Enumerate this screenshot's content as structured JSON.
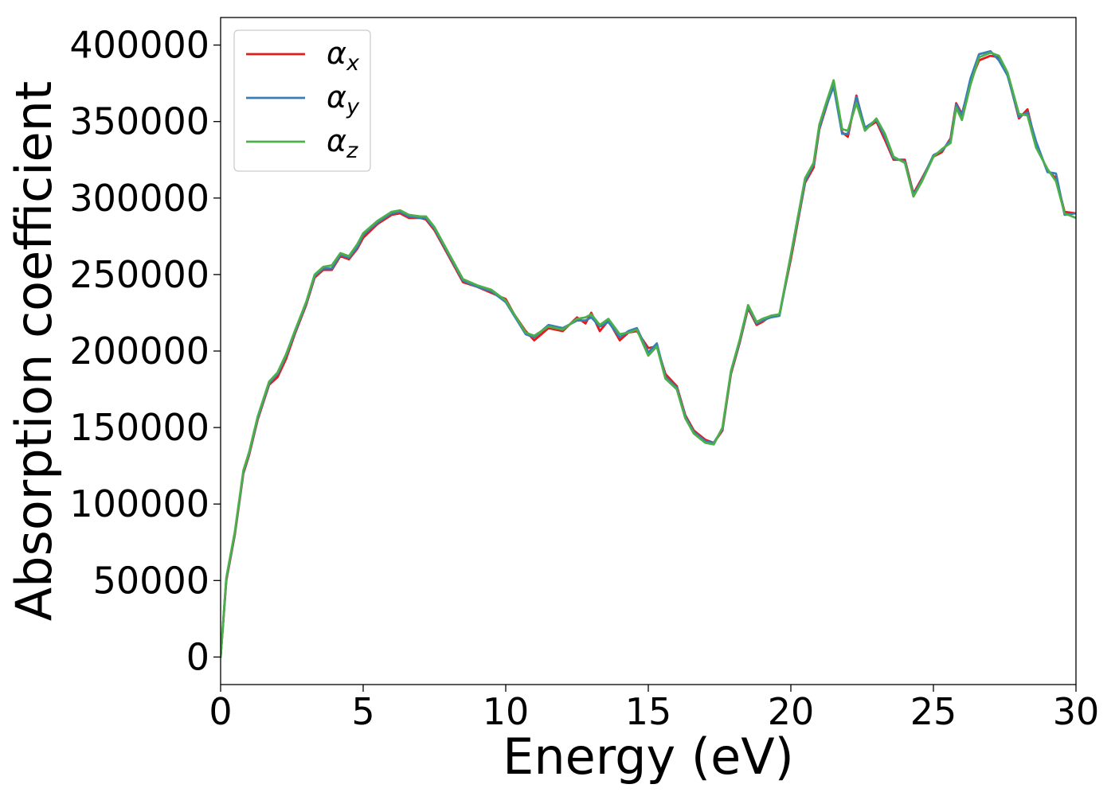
{
  "chart_data": {
    "type": "line",
    "title": "",
    "xlabel": "Energy (eV)",
    "ylabel": "Absorption coefficient",
    "xlim": [
      0,
      30
    ],
    "ylim": [
      -18000,
      418000
    ],
    "xticks": [
      0,
      5,
      10,
      15,
      20,
      25,
      30
    ],
    "yticks": [
      0,
      50000,
      100000,
      150000,
      200000,
      250000,
      300000,
      350000,
      400000
    ],
    "grid": false,
    "legend_position": "top-left",
    "series": [
      {
        "name": "α_x",
        "legend_symbol": "α",
        "legend_sub": "x",
        "color": "#e41a1c",
        "x": [
          0,
          0.2,
          0.5,
          0.8,
          1.0,
          1.3,
          1.7,
          2.0,
          2.3,
          2.6,
          3.0,
          3.3,
          3.6,
          3.9,
          4.2,
          4.5,
          4.8,
          5.0,
          5.5,
          6.0,
          6.3,
          6.6,
          7.0,
          7.2,
          7.5,
          8.0,
          8.5,
          9.0,
          9.5,
          10.0,
          10.3,
          10.7,
          11.0,
          11.5,
          12.0,
          12.5,
          12.8,
          13.0,
          13.3,
          13.6,
          14.0,
          14.3,
          14.6,
          15.0,
          15.3,
          15.6,
          16.0,
          16.3,
          16.6,
          17.0,
          17.3,
          17.6,
          17.9,
          18.2,
          18.5,
          18.8,
          19.0,
          19.3,
          19.6,
          20.0,
          20.5,
          20.8,
          21.0,
          21.2,
          21.5,
          21.8,
          22.0,
          22.3,
          22.6,
          23.0,
          23.3,
          23.6,
          24.0,
          24.3,
          24.6,
          25.0,
          25.3,
          25.6,
          25.8,
          26.0,
          26.3,
          26.6,
          27.0,
          27.3,
          27.6,
          28.0,
          28.3,
          28.6,
          29.0,
          29.3,
          29.6,
          30.0
        ],
        "values": [
          0,
          50000,
          80000,
          120000,
          132000,
          155000,
          178000,
          183000,
          195000,
          211000,
          230000,
          248000,
          253000,
          253000,
          262000,
          260000,
          267000,
          274000,
          283000,
          289000,
          290000,
          287000,
          287000,
          286000,
          279000,
          262000,
          245000,
          242000,
          238000,
          234000,
          224000,
          213000,
          207000,
          215000,
          213000,
          222000,
          218000,
          225000,
          213000,
          220000,
          207000,
          212000,
          213000,
          202000,
          203000,
          185000,
          177000,
          158000,
          148000,
          142000,
          140000,
          148000,
          185000,
          205000,
          228000,
          217000,
          219000,
          223000,
          224000,
          260000,
          310000,
          320000,
          345000,
          357000,
          375000,
          343000,
          340000,
          367000,
          345000,
          350000,
          338000,
          325000,
          325000,
          303000,
          313000,
          327000,
          330000,
          339000,
          362000,
          355000,
          376000,
          390000,
          393000,
          392000,
          381000,
          352000,
          358000,
          335000,
          318000,
          313000,
          291000,
          290000
        ]
      },
      {
        "name": "α_y",
        "legend_symbol": "α",
        "legend_sub": "y",
        "color": "#377eb8",
        "x": [
          0,
          0.2,
          0.5,
          0.8,
          1.0,
          1.3,
          1.7,
          2.0,
          2.3,
          2.6,
          3.0,
          3.3,
          3.6,
          3.9,
          4.2,
          4.5,
          4.8,
          5.0,
          5.5,
          6.0,
          6.3,
          6.6,
          7.0,
          7.2,
          7.5,
          8.0,
          8.5,
          9.0,
          9.5,
          10.0,
          10.3,
          10.7,
          11.0,
          11.5,
          12.0,
          12.5,
          12.8,
          13.0,
          13.3,
          13.6,
          14.0,
          14.3,
          14.6,
          15.0,
          15.3,
          15.6,
          16.0,
          16.3,
          16.6,
          17.0,
          17.3,
          17.6,
          17.9,
          18.2,
          18.5,
          18.8,
          19.0,
          19.3,
          19.6,
          20.0,
          20.5,
          20.8,
          21.0,
          21.2,
          21.5,
          21.8,
          22.0,
          22.3,
          22.6,
          23.0,
          23.3,
          23.6,
          24.0,
          24.3,
          24.6,
          25.0,
          25.3,
          25.6,
          25.8,
          26.0,
          26.3,
          26.6,
          27.0,
          27.3,
          27.6,
          28.0,
          28.3,
          28.6,
          29.0,
          29.3,
          29.6,
          30.0
        ],
        "values": [
          0,
          51000,
          81000,
          121000,
          133000,
          156000,
          179000,
          185000,
          197000,
          212000,
          231000,
          249000,
          254000,
          254000,
          263000,
          261000,
          268000,
          276000,
          284000,
          290000,
          291000,
          288000,
          287000,
          287000,
          280000,
          263000,
          246000,
          242000,
          239000,
          232000,
          223000,
          211000,
          209000,
          217000,
          215000,
          220000,
          220000,
          222000,
          216000,
          219000,
          209000,
          213000,
          215000,
          199000,
          205000,
          183000,
          176000,
          157000,
          147000,
          141000,
          140000,
          149000,
          186000,
          206000,
          229000,
          218000,
          220000,
          222000,
          223000,
          262000,
          311000,
          322000,
          346000,
          358000,
          373000,
          342000,
          342000,
          366000,
          346000,
          351000,
          340000,
          326000,
          324000,
          302000,
          312000,
          328000,
          331000,
          338000,
          361000,
          354000,
          378000,
          394000,
          396000,
          390000,
          380000,
          353000,
          356000,
          337000,
          317000,
          316000,
          289000,
          290000
        ]
      },
      {
        "name": "α_z",
        "legend_symbol": "α",
        "legend_sub": "z",
        "color": "#4daf4a",
        "x": [
          0,
          0.2,
          0.5,
          0.8,
          1.0,
          1.3,
          1.7,
          2.0,
          2.3,
          2.6,
          3.0,
          3.3,
          3.6,
          3.9,
          4.2,
          4.5,
          4.8,
          5.0,
          5.5,
          6.0,
          6.3,
          6.6,
          7.0,
          7.2,
          7.5,
          8.0,
          8.5,
          9.0,
          9.5,
          10.0,
          10.3,
          10.7,
          11.0,
          11.5,
          12.0,
          12.5,
          12.8,
          13.0,
          13.3,
          13.6,
          14.0,
          14.3,
          14.6,
          15.0,
          15.3,
          15.6,
          16.0,
          16.3,
          16.6,
          17.0,
          17.3,
          17.6,
          17.9,
          18.2,
          18.5,
          18.8,
          19.0,
          19.3,
          19.6,
          20.0,
          20.5,
          20.8,
          21.0,
          21.2,
          21.5,
          21.8,
          22.0,
          22.3,
          22.6,
          23.0,
          23.3,
          23.6,
          24.0,
          24.3,
          24.6,
          25.0,
          25.3,
          25.6,
          25.8,
          26.0,
          26.3,
          26.6,
          27.0,
          27.3,
          27.6,
          28.0,
          28.3,
          28.6,
          29.0,
          29.3,
          29.6,
          30.0
        ],
        "values": [
          0,
          52000,
          82000,
          122000,
          134000,
          157000,
          180000,
          186000,
          198000,
          213000,
          232000,
          250000,
          255000,
          256000,
          264000,
          262000,
          270000,
          277000,
          285000,
          291000,
          292000,
          289000,
          288000,
          288000,
          281000,
          264000,
          247000,
          243000,
          240000,
          233000,
          224000,
          212000,
          210000,
          216000,
          214000,
          221000,
          222000,
          224000,
          217000,
          221000,
          211000,
          212000,
          214000,
          197000,
          203000,
          182000,
          175000,
          156000,
          146000,
          140000,
          139000,
          150000,
          187000,
          207000,
          230000,
          219000,
          221000,
          223000,
          224000,
          263000,
          313000,
          323000,
          348000,
          360000,
          377000,
          345000,
          344000,
          362000,
          344000,
          352000,
          342000,
          327000,
          323000,
          301000,
          311000,
          327000,
          332000,
          336000,
          359000,
          351000,
          374000,
          392000,
          395000,
          393000,
          382000,
          355000,
          354000,
          333000,
          319000,
          311000,
          290000,
          287000
        ]
      }
    ]
  }
}
